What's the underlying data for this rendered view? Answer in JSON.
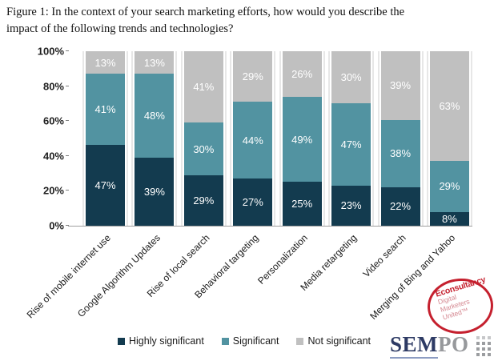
{
  "figure": {
    "title_line1": "Figure 1: In the context of your search marketing efforts, how would you describe the",
    "title_line2": "impact of the following trends and technologies?"
  },
  "chart_data": {
    "type": "bar",
    "stacked": true,
    "title": "Figure 1: In the context of your search marketing efforts, how would you describe the impact of the following trends and technologies?",
    "xlabel": "",
    "ylabel": "",
    "categories": [
      "Rise of mobile internet use",
      "Google Algorithm Updates",
      "Rise of local search",
      "Behavioral targeting",
      "Personalization",
      "Media retargeting",
      "Video search",
      "Merging of Bing and Yahoo"
    ],
    "series": [
      {
        "name": "Highly significant",
        "color": "#133b4f",
        "values": [
          47,
          39,
          29,
          27,
          25,
          23,
          22,
          8
        ]
      },
      {
        "name": "Significant",
        "color": "#5293a1",
        "values": [
          41,
          48,
          30,
          44,
          49,
          47,
          38,
          29
        ]
      },
      {
        "name": "Not significant",
        "color": "#c0c0c0",
        "values": [
          13,
          13,
          41,
          29,
          26,
          30,
          39,
          63
        ]
      }
    ],
    "data_label_suffix": "%",
    "y_axis": {
      "ticks": [
        "0%",
        "20%",
        "40%",
        "60%",
        "80%",
        "100%"
      ],
      "min": 0,
      "max": 100
    },
    "grid": false,
    "legend_position": "bottom"
  },
  "branding": {
    "econsultancy": {
      "brand": "Econsultancy",
      "line1": "Digital",
      "line2": "Marketers",
      "line3": "United™",
      "accent_color": "#c5202e"
    },
    "sempo": {
      "part1": "SEM",
      "part2": "PO"
    }
  }
}
